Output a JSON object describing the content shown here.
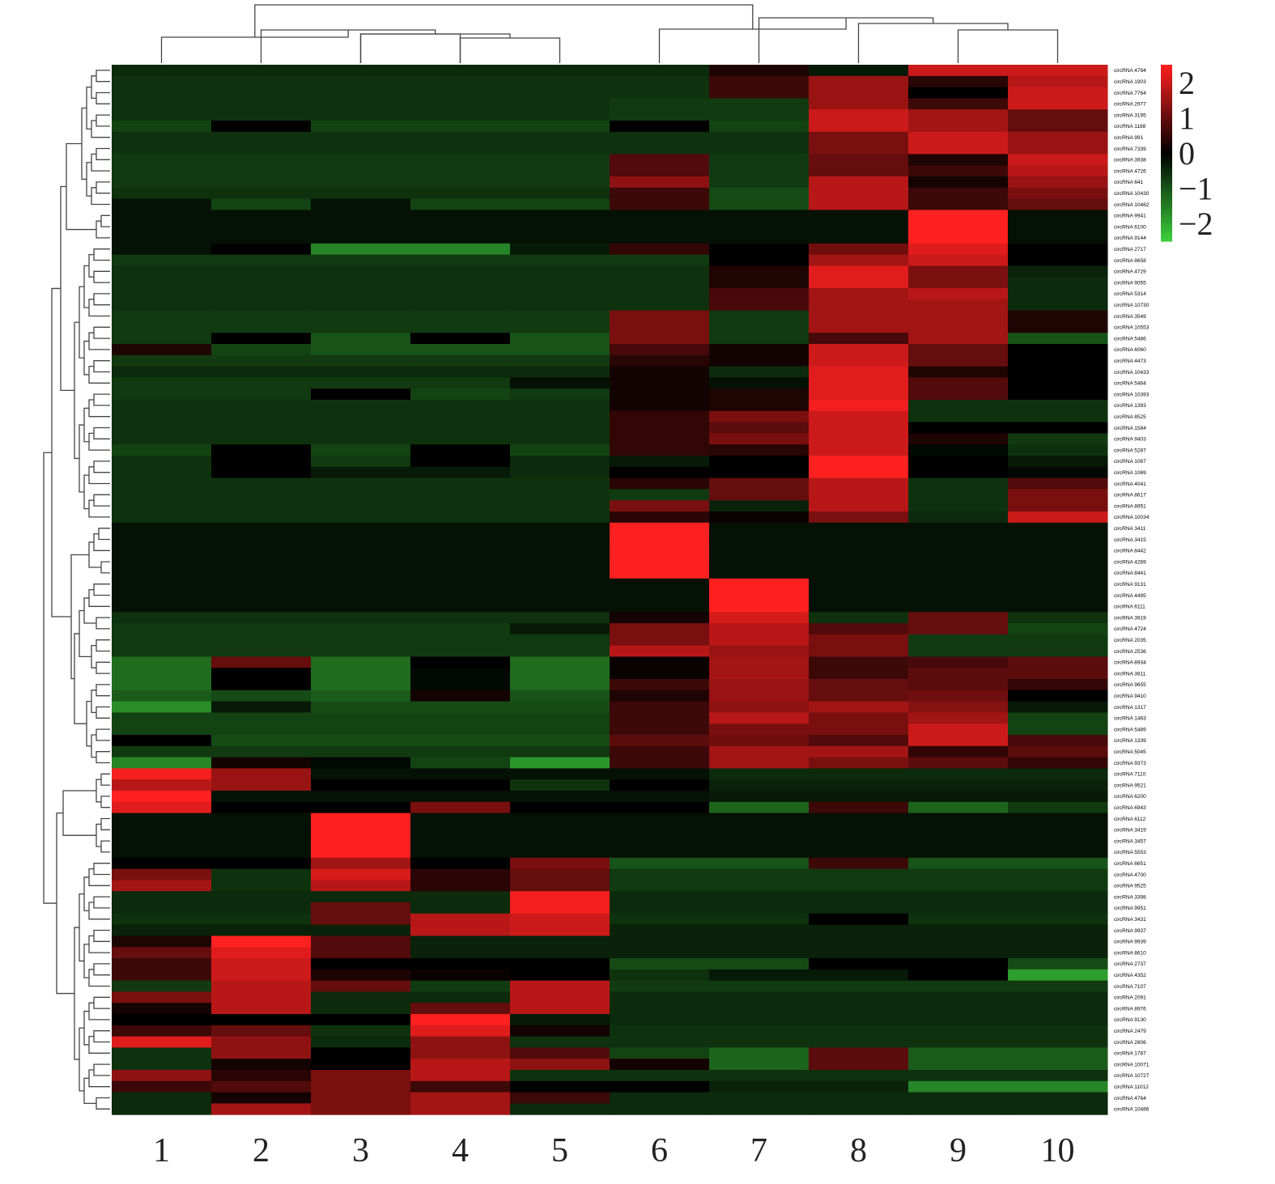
{
  "chart_data": {
    "type": "heatmap",
    "columns": [
      "1",
      "2",
      "3",
      "4",
      "5",
      "6",
      "7",
      "8",
      "9",
      "10"
    ],
    "rows": [
      "circRNA 4794",
      "circRNA 1903",
      "circRNA 7764",
      "circRNA 2977",
      "circRNA 3195",
      "circRNA 1188",
      "circRNA 991",
      "circRNA 7339",
      "circRNA 3938",
      "circRNA 4726",
      "circRNA 641",
      "circRNA 10430",
      "circRNA 10482",
      "circRNA 9941",
      "circRNA 6100",
      "circRNA 9144",
      "circRNA 2717",
      "circRNA 8658",
      "circRNA 4729",
      "circRNA 9055",
      "circRNA 5314",
      "circRNA 10730",
      "circRNA 3549",
      "circRNA 10553",
      "circRNA 5486",
      "circRNA 6060",
      "circRNA 4473",
      "circRNA 10433",
      "circRNA 5464",
      "circRNA 10393",
      "circRNA 1393",
      "circRNA 8525",
      "circRNA 1584",
      "circRNA 9403",
      "circRNA 5287",
      "circRNA 1067",
      "circRNA 1069",
      "circRNA 4041",
      "circRNA 8617",
      "circRNA 8951",
      "circRNA 10034",
      "circRNA 3411",
      "circRNA 3415",
      "circRNA 8442",
      "circRNA 4269",
      "circRNA 8441",
      "circRNA 9131",
      "circRNA 4495",
      "circRNA 6111",
      "circRNA 3919",
      "circRNA 4724",
      "circRNA 2035",
      "circRNA 2536",
      "circRNA 8934",
      "circRNA 3811",
      "circRNA 9655",
      "circRNA 9410",
      "circRNA 1317",
      "circRNA 1463",
      "circRNA 5489",
      "circRNA 1339",
      "circRNA 5045",
      "circRNA 9373",
      "circRNA 7110",
      "circRNA 9521",
      "circRNA 6200",
      "circRNA 6943",
      "circRNA 6112",
      "circRNA 3419",
      "circRNA 3457",
      "circRNA 5553",
      "circRNA 6651",
      "circRNA 4700",
      "circRNA 9525",
      "circRNA 3398",
      "circRNA 9951",
      "circRNA 3431",
      "circRNA 9937",
      "circRNA 9939",
      "circRNA 8610",
      "circRNA 2737",
      "circRNA 4352",
      "circRNA 7107",
      "circRNA 2091",
      "circRNA 8976",
      "circRNA 9130",
      "circRNA 2479",
      "circRNA 2806",
      "circRNA 1787",
      "circRNA 10071",
      "circRNA 10727",
      "circRNA 11012",
      "circRNA 4764",
      "circRNA 10486"
    ],
    "values": [
      [
        -0.5,
        -0.5,
        -0.5,
        -0.5,
        -0.5,
        -0.5,
        0.3,
        -0.3,
        2,
        2
      ],
      [
        -0.6,
        -0.6,
        -0.6,
        -0.6,
        -0.6,
        -0.6,
        0.6,
        1.5,
        0.4,
        1.8
      ],
      [
        -0.6,
        -0.6,
        -0.6,
        -0.6,
        -0.6,
        -0.6,
        0.6,
        1.5,
        0,
        2
      ],
      [
        -0.6,
        -0.6,
        -0.6,
        -0.6,
        -0.6,
        -0.7,
        -0.7,
        1.5,
        0.6,
        2
      ],
      [
        -0.6,
        -0.6,
        -0.6,
        -0.6,
        -0.6,
        -0.7,
        -0.7,
        2,
        1.6,
        1
      ],
      [
        -0.8,
        0,
        -0.8,
        -0.8,
        -0.8,
        0,
        -0.8,
        2,
        1.6,
        1
      ],
      [
        -0.6,
        -0.6,
        -0.6,
        -0.6,
        -0.6,
        -0.6,
        -0.6,
        1.2,
        2,
        1.5
      ],
      [
        -0.6,
        -0.6,
        -0.6,
        -0.6,
        -0.6,
        -0.6,
        -0.6,
        1.2,
        2,
        1.5
      ],
      [
        -0.7,
        -0.7,
        -0.7,
        -0.7,
        -0.7,
        0.8,
        -0.7,
        1,
        0.3,
        2
      ],
      [
        -0.7,
        -0.7,
        -0.7,
        -0.7,
        -0.7,
        0.8,
        -0.7,
        1,
        0.6,
        1.8
      ],
      [
        -0.7,
        -0.7,
        -0.7,
        -0.7,
        -0.7,
        1.4,
        -0.7,
        1.8,
        0.2,
        1.5
      ],
      [
        -0.6,
        -0.6,
        -0.6,
        -0.6,
        -0.6,
        0.6,
        -0.9,
        1.8,
        0.6,
        1.2
      ],
      [
        -0.2,
        -0.8,
        -0.2,
        -0.8,
        -0.8,
        0.6,
        -0.9,
        1.8,
        0.6,
        1
      ],
      [
        -0.2,
        -0.2,
        -0.2,
        -0.2,
        -0.2,
        -0.2,
        -0.2,
        -0.2,
        2.5,
        -0.2
      ],
      [
        -0.2,
        -0.2,
        -0.2,
        -0.2,
        -0.2,
        -0.2,
        -0.2,
        -0.2,
        2.5,
        -0.2
      ],
      [
        -0.2,
        -0.2,
        -0.2,
        -0.2,
        -0.2,
        -0.2,
        -0.2,
        -0.2,
        2.5,
        -0.2
      ],
      [
        -0.2,
        0,
        -1.6,
        -1.6,
        -0.3,
        0.5,
        0,
        1.1,
        2.2,
        0
      ],
      [
        -0.7,
        -0.7,
        -0.7,
        -0.7,
        -0.7,
        -0.7,
        0,
        1.6,
        2,
        0
      ],
      [
        -0.6,
        -0.6,
        -0.6,
        -0.6,
        -0.6,
        -0.6,
        0.3,
        2.2,
        1.2,
        -0.4
      ],
      [
        -0.6,
        -0.6,
        -0.6,
        -0.6,
        -0.6,
        -0.6,
        0.3,
        2.2,
        1.2,
        -0.5
      ],
      [
        -0.6,
        -0.6,
        -0.6,
        -0.6,
        -0.6,
        -0.6,
        0.7,
        1.6,
        1.8,
        -0.5
      ],
      [
        -0.6,
        -0.6,
        -0.6,
        -0.6,
        -0.6,
        -0.6,
        0.7,
        1.6,
        1.6,
        -0.5
      ],
      [
        -0.7,
        -0.7,
        -0.7,
        -0.7,
        -0.7,
        1.2,
        -0.7,
        1.6,
        1.6,
        0.3
      ],
      [
        -0.7,
        -0.7,
        -0.7,
        -0.7,
        -0.7,
        1.2,
        -0.7,
        1.6,
        1.6,
        0.3
      ],
      [
        -0.7,
        0,
        -1,
        0,
        -1,
        1.2,
        -0.7,
        0.7,
        1.6,
        -1
      ],
      [
        0.3,
        -0.8,
        -1,
        -1,
        -1,
        0.7,
        0.2,
        2,
        1,
        0
      ],
      [
        -0.7,
        -0.7,
        -0.7,
        -0.7,
        -0.7,
        0.4,
        0.2,
        2,
        1,
        0
      ],
      [
        -0.5,
        -0.5,
        -0.5,
        -0.5,
        -0.5,
        0.2,
        -0.5,
        2.2,
        0.3,
        0
      ],
      [
        -0.7,
        -0.7,
        -0.7,
        -0.7,
        -0.2,
        0.2,
        -0.2,
        2.2,
        0.8,
        0
      ],
      [
        -0.7,
        -0.7,
        0,
        -0.8,
        -0.7,
        0.2,
        0.3,
        2.2,
        0.8,
        0
      ],
      [
        -0.6,
        -0.6,
        -0.6,
        -0.6,
        -0.6,
        0.2,
        0.3,
        2.4,
        -0.6,
        -0.6
      ],
      [
        -0.6,
        -0.6,
        -0.6,
        -0.6,
        -0.6,
        0.5,
        1.2,
        2,
        -0.6,
        -0.6
      ],
      [
        -0.6,
        -0.6,
        -0.6,
        -0.6,
        -0.6,
        0.5,
        0.9,
        2,
        0,
        0
      ],
      [
        -0.6,
        -0.6,
        -0.6,
        -0.6,
        -0.6,
        0.5,
        1.2,
        2,
        0.3,
        -0.7
      ],
      [
        -0.8,
        0,
        -0.8,
        0,
        -0.8,
        0.5,
        0.4,
        2,
        -0.1,
        -0.6
      ],
      [
        -0.6,
        0,
        -0.7,
        0,
        -0.5,
        -0.3,
        0,
        2.5,
        0,
        -0.3
      ],
      [
        -0.6,
        0,
        -0.3,
        -0.3,
        -0.5,
        0,
        0,
        2.5,
        0,
        -0.1
      ],
      [
        -0.6,
        -0.6,
        -0.6,
        -0.6,
        -0.6,
        0.4,
        1,
        1.8,
        -0.6,
        0.8
      ],
      [
        -0.6,
        -0.6,
        -0.6,
        -0.6,
        -0.6,
        -0.7,
        1,
        1.8,
        -0.6,
        1.2
      ],
      [
        -0.6,
        -0.6,
        -0.6,
        -0.6,
        -0.6,
        1.2,
        -0.4,
        1.8,
        -0.6,
        1.2
      ],
      [
        -0.6,
        -0.6,
        -0.6,
        -0.6,
        -0.6,
        0.4,
        0.1,
        1.2,
        -0.5,
        2
      ],
      [
        -0.2,
        -0.2,
        -0.2,
        -0.2,
        -0.2,
        2.5,
        -0.2,
        -0.2,
        -0.2,
        -0.2
      ],
      [
        -0.2,
        -0.2,
        -0.2,
        -0.2,
        -0.2,
        2.5,
        -0.2,
        -0.2,
        -0.2,
        -0.2
      ],
      [
        -0.2,
        -0.2,
        -0.2,
        -0.2,
        -0.2,
        2.5,
        -0.2,
        -0.2,
        -0.2,
        -0.2
      ],
      [
        -0.2,
        -0.2,
        -0.2,
        -0.2,
        -0.2,
        2.5,
        -0.2,
        -0.2,
        -0.2,
        -0.2
      ],
      [
        -0.2,
        -0.2,
        -0.2,
        -0.2,
        -0.2,
        2.5,
        -0.2,
        -0.2,
        -0.2,
        -0.2
      ],
      [
        -0.2,
        -0.2,
        -0.2,
        -0.2,
        -0.2,
        -0.2,
        2.5,
        -0.2,
        -0.2,
        -0.2
      ],
      [
        -0.2,
        -0.2,
        -0.2,
        -0.2,
        -0.2,
        -0.2,
        2.5,
        -0.2,
        -0.2,
        -0.2
      ],
      [
        -0.2,
        -0.2,
        -0.2,
        -0.2,
        -0.2,
        -0.2,
        2.5,
        -0.2,
        -0.2,
        -0.2
      ],
      [
        -0.6,
        -0.6,
        -0.6,
        -0.6,
        -0.6,
        0.2,
        2.1,
        -0.6,
        1,
        -0.6
      ],
      [
        -0.7,
        -0.7,
        -0.7,
        -0.7,
        -0.3,
        1.2,
        1.8,
        0.8,
        1,
        -0.8
      ],
      [
        -0.7,
        -0.7,
        -0.7,
        -0.7,
        -0.7,
        1.2,
        1.8,
        1.2,
        -0.7,
        -0.7
      ],
      [
        -0.7,
        -0.7,
        -0.7,
        -0.7,
        -0.7,
        1.8,
        1.5,
        1.2,
        -0.7,
        -0.7
      ],
      [
        -1.3,
        1,
        -1.3,
        0,
        -1.3,
        0.1,
        1.6,
        0.6,
        0.7,
        0.9
      ],
      [
        -1.3,
        0,
        -1.3,
        -0.1,
        -1.3,
        0.1,
        1.6,
        0.6,
        0.9,
        0.9
      ],
      [
        -1.3,
        0,
        -1.3,
        -0.1,
        -1.3,
        0.6,
        1.5,
        1,
        0.9,
        0.5
      ],
      [
        -1.1,
        -0.9,
        -1.1,
        0.2,
        -1,
        0.3,
        1.5,
        1,
        1.1,
        0
      ],
      [
        -1.7,
        -0.3,
        -0.9,
        -0.9,
        -0.9,
        0.6,
        1.4,
        1.6,
        1.3,
        -0.3
      ],
      [
        -0.8,
        -0.8,
        -0.8,
        -0.8,
        -0.8,
        0.6,
        1.8,
        1.2,
        1.6,
        -0.8
      ],
      [
        -0.8,
        -0.8,
        -0.8,
        -0.8,
        -0.8,
        0.6,
        1.2,
        1.2,
        2,
        -0.8
      ],
      [
        0,
        -0.9,
        -0.9,
        -0.9,
        -0.9,
        0.9,
        1.1,
        0.8,
        2,
        0.7
      ],
      [
        -0.7,
        -0.7,
        -0.7,
        -0.7,
        -0.7,
        0.6,
        1.6,
        1.6,
        0.5,
        0.9
      ],
      [
        -1.6,
        0.2,
        -0.1,
        -0.8,
        -1.8,
        0.6,
        1.6,
        1.2,
        0.9,
        0.5
      ],
      [
        2.4,
        1.5,
        -0.2,
        -0.2,
        -0.2,
        -0.2,
        -0.5,
        -0.5,
        -0.5,
        -0.5
      ],
      [
        1.8,
        1.5,
        0,
        0,
        -0.6,
        0,
        -0.4,
        -0.4,
        -0.4,
        -0.4
      ],
      [
        2.6,
        -0.2,
        -0.2,
        -0.2,
        -0.2,
        -0.2,
        -0.3,
        -0.3,
        -0.3,
        -0.3
      ],
      [
        2.2,
        0,
        0,
        1.2,
        0,
        0,
        -1.2,
        0.6,
        -1.2,
        -0.7
      ],
      [
        -0.2,
        -0.2,
        2.5,
        -0.2,
        -0.2,
        -0.2,
        -0.2,
        -0.2,
        -0.2,
        -0.2
      ],
      [
        -0.2,
        -0.2,
        2.5,
        -0.2,
        -0.2,
        -0.2,
        -0.2,
        -0.2,
        -0.2,
        -0.2
      ],
      [
        -0.2,
        -0.2,
        2.5,
        -0.2,
        -0.2,
        -0.2,
        -0.2,
        -0.2,
        -0.2,
        -0.2
      ],
      [
        -0.2,
        -0.2,
        2.5,
        -0.2,
        -0.2,
        -0.2,
        -0.2,
        -0.2,
        -0.2,
        -0.2
      ],
      [
        0,
        0,
        1.6,
        0,
        1.2,
        -1,
        -1,
        0.6,
        -1,
        -1
      ],
      [
        1.2,
        -0.6,
        2.1,
        0.4,
        1,
        -0.7,
        -0.7,
        -0.7,
        -0.7,
        -0.7
      ],
      [
        1.6,
        -0.6,
        1.8,
        0.4,
        1,
        -0.7,
        -0.7,
        -0.7,
        -0.7,
        -0.7
      ],
      [
        -0.5,
        -0.5,
        -0.5,
        -0.5,
        2.4,
        -0.5,
        -0.5,
        -0.5,
        -0.5,
        -0.5
      ],
      [
        -0.5,
        -0.5,
        1,
        -0.5,
        2.4,
        -0.5,
        -0.5,
        -0.5,
        -0.5,
        -0.5
      ],
      [
        -0.6,
        -0.6,
        1,
        1.8,
        2,
        -0.6,
        -0.6,
        0,
        -0.6,
        -0.6
      ],
      [
        -0.4,
        -0.4,
        -0.4,
        1.8,
        2,
        -0.4,
        -0.4,
        -0.4,
        -0.4,
        -0.4
      ],
      [
        0.3,
        2.5,
        0.8,
        -0.4,
        -0.4,
        -0.4,
        -0.4,
        -0.4,
        -0.4,
        -0.4
      ],
      [
        1,
        2.2,
        0.8,
        -0.4,
        -0.4,
        -0.4,
        -0.4,
        -0.4,
        -0.4,
        -0.4
      ],
      [
        0.6,
        2,
        0,
        0,
        0,
        -0.9,
        -0.9,
        0,
        0,
        -0.9
      ],
      [
        0.6,
        2,
        0.3,
        0.1,
        0,
        -0.6,
        -0.3,
        -0.3,
        0,
        -1.9
      ],
      [
        -0.7,
        1.8,
        1,
        -0.7,
        1.8,
        -0.7,
        -0.7,
        -0.7,
        -0.7,
        -0.7
      ],
      [
        1.2,
        1.8,
        -0.5,
        -0.5,
        1.8,
        -0.5,
        -0.5,
        -0.5,
        -0.5,
        -0.5
      ],
      [
        0.2,
        1.8,
        -0.5,
        1,
        1.8,
        -0.5,
        -0.5,
        -0.5,
        -0.5,
        -0.5
      ],
      [
        0,
        0,
        0,
        2.5,
        -0.3,
        -0.5,
        -0.5,
        -0.5,
        -0.5,
        -0.5
      ],
      [
        0.6,
        1,
        -0.6,
        2.2,
        0.2,
        -0.6,
        -0.6,
        -0.6,
        -0.6,
        -0.6
      ],
      [
        2.2,
        1.4,
        -0.5,
        1.4,
        -0.6,
        -0.6,
        -0.6,
        -0.6,
        -0.6,
        -0.6
      ],
      [
        -0.6,
        1.4,
        0,
        1.4,
        0.8,
        -0.8,
        -1.2,
        0.9,
        -1.1,
        -1.1
      ],
      [
        -0.6,
        0.2,
        0,
        1.8,
        1.4,
        0.2,
        -1.2,
        0.9,
        -1.1,
        -1.1
      ],
      [
        1.4,
        0.4,
        1.2,
        1.8,
        -0.6,
        -0.6,
        -0.6,
        -0.6,
        -0.6,
        -0.6
      ],
      [
        0.6,
        0.8,
        1.2,
        0.6,
        0,
        0,
        -0.4,
        -0.4,
        -1.6,
        -1.6
      ],
      [
        -0.5,
        0.2,
        1.2,
        1.6,
        0.6,
        -0.5,
        -0.5,
        -0.5,
        -0.5,
        -0.5
      ],
      [
        -0.5,
        1.6,
        1.2,
        1.6,
        -0.5,
        -0.5,
        -0.5,
        -0.5,
        -0.5,
        -0.5
      ]
    ],
    "color_scale": {
      "min": -2.5,
      "max": 2.5,
      "low_color": "#3cd03c",
      "mid_color": "#000000",
      "high_color": "#ff2020",
      "ticks": [
        {
          "value": 2,
          "label": "2"
        },
        {
          "value": 1,
          "label": "1"
        },
        {
          "value": 0,
          "label": "0"
        },
        {
          "value": -1,
          "label": "−1"
        },
        {
          "value": -2,
          "label": "−2"
        }
      ]
    },
    "legend_position": "top-right",
    "row_dendrogram": "left",
    "column_dendrogram": "top"
  }
}
